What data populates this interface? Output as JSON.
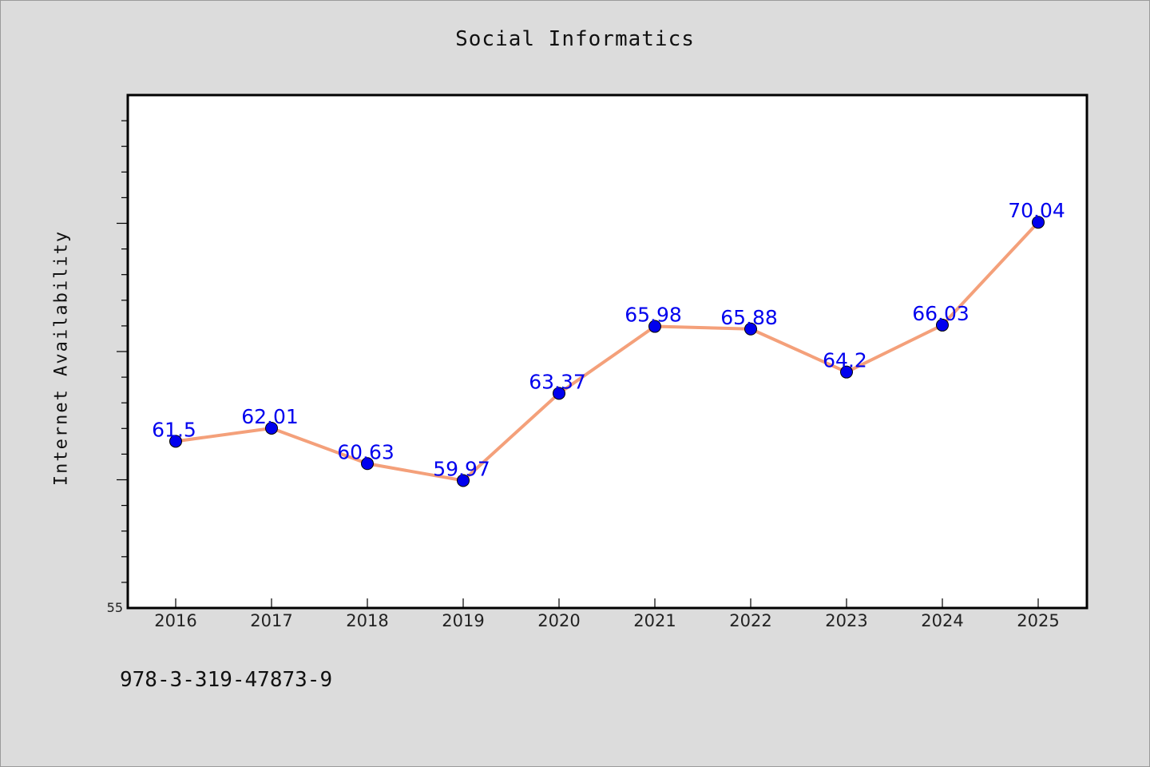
{
  "chart_data": {
    "type": "line",
    "title": "Social Informatics",
    "xlabel": "",
    "ylabel": "Internet Availability",
    "categories": [
      "2016",
      "2017",
      "2018",
      "2019",
      "2020",
      "2021",
      "2022",
      "2023",
      "2024",
      "2025"
    ],
    "series": [
      {
        "values": [
          61.5,
          62.01,
          60.63,
          59.97,
          63.37,
          65.98,
          65.88,
          64.2,
          66.03,
          70.04
        ],
        "data_labels": [
          "61.5",
          "62.01",
          "60.63",
          "59.97",
          "63.37",
          "65.98",
          "65.88",
          "64.2",
          "66.03",
          "70.04"
        ],
        "line_color": "#f4a07a",
        "marker_color": "#0000ee"
      }
    ],
    "ylim": [
      55,
      75
    ],
    "y_tick_labels": [
      "55"
    ],
    "grid": false,
    "legend": "none"
  },
  "footer": {
    "isbn": "978-3-319-47873-9"
  },
  "colors": {
    "background": "#dcdcdc",
    "plot_area": "#ffffff",
    "label_color": "#0000ee"
  }
}
